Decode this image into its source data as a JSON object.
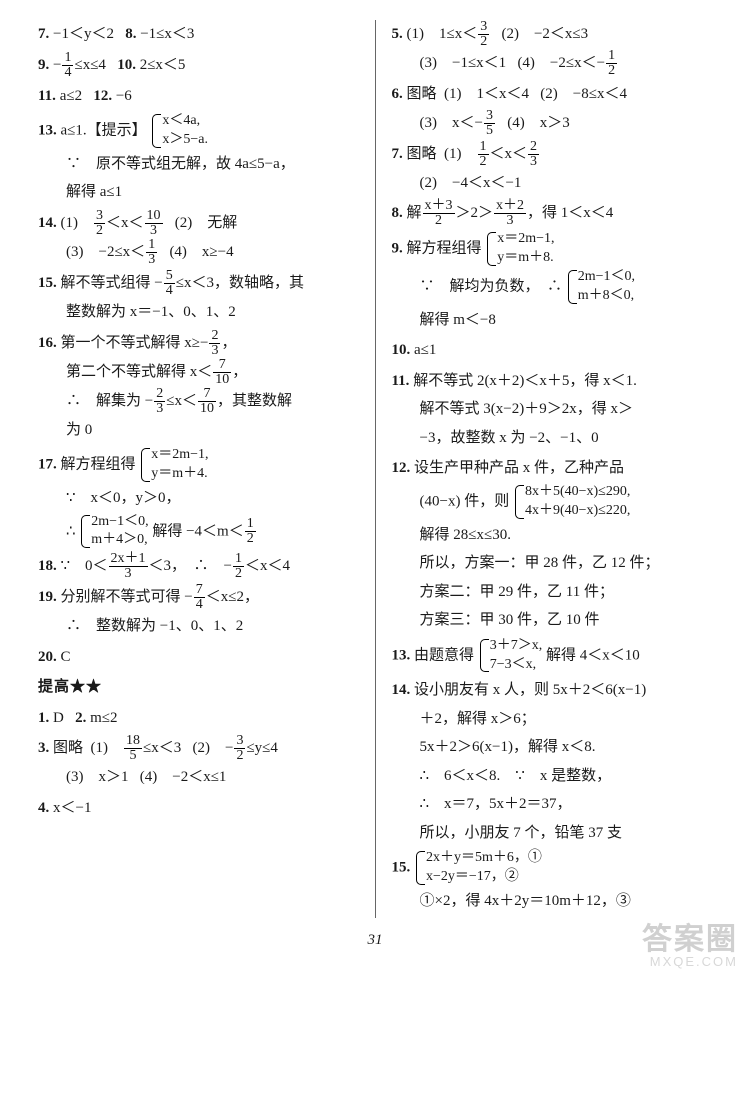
{
  "left": {
    "i7": "−1＜y＜2",
    "i8": "−1≤x＜3",
    "i9": [
      "−",
      "1",
      "4",
      "≤x≤4"
    ],
    "i10": "2≤x＜5",
    "i11": "a≤2",
    "i12": "−6",
    "i13": {
      "ans": "a≤1.",
      "hint_label": "【提示】",
      "brace": [
        "x＜4a,",
        "x＞5−a."
      ],
      "line1": "∵　原不等式组无解，故 4a≤5−a，",
      "line2": "解得 a≤1"
    },
    "i14": {
      "p1": [
        "(1)　",
        "3",
        "2",
        "＜x＜",
        "10",
        "3"
      ],
      "p2": "(2)　无解",
      "p3": [
        "(3)　−2≤x＜",
        "1",
        "3"
      ],
      "p4": "(4)　x≥−4"
    },
    "i15": {
      "l1": [
        "解不等式组得 −",
        "5",
        "4",
        "≤x＜3，数轴略，其"
      ],
      "l2": "整数解为 x＝−1、0、1、2"
    },
    "i16": {
      "l1": [
        "第一个不等式解得 x≥−",
        "2",
        "3",
        "，"
      ],
      "l2": [
        "第二个不等式解得 x＜",
        "7",
        "10",
        "，"
      ],
      "l3a": [
        "∴　解集为 −",
        "2",
        "3",
        "≤x＜",
        "7",
        "10",
        "，其整数解"
      ],
      "l3b": "为 0"
    },
    "i17": {
      "l1": "解方程组得",
      "brace1": [
        "x＝2m−1,",
        "y＝m＋4."
      ],
      "l2": "∵　x＜0，y＞0，",
      "l3a": "∴",
      "brace2": [
        "2m−1＜0,",
        "m＋4＞0,"
      ],
      "l3b": [
        "解得 −4＜m＜",
        "1",
        "2"
      ]
    },
    "i18": [
      "∵　0＜",
      "2x＋1",
      "3",
      "＜3，　∴　−",
      "1",
      "2",
      "＜x＜4"
    ],
    "i19": {
      "l1": [
        "分别解不等式可得 −",
        "7",
        "4",
        "＜x≤2，"
      ],
      "l2": "∴　整数解为 −1、0、1、2"
    },
    "i20": "C",
    "sec": "提高★★",
    "a1": "D",
    "a2": "m≤2",
    "a3": {
      "pre": "图略",
      "p1": [
        "(1)　",
        "18",
        "5",
        "≤x＜3"
      ],
      "p2": [
        "(2)　−",
        "3",
        "2",
        "≤y≤4"
      ],
      "p3": "(3)　x＞1",
      "p4": "(4)　−2＜x≤1"
    },
    "a4": "x＜−1"
  },
  "right": {
    "i5": {
      "p1": [
        "(1)　1≤x＜",
        "3",
        "2"
      ],
      "p2": "(2)　−2＜x≤3",
      "p3": "(3)　−1≤x＜1",
      "p4": [
        "(4)　−2≤x＜−",
        "1",
        "2"
      ]
    },
    "i6": {
      "pre": "图略",
      "p1": "(1)　1＜x＜4",
      "p2": "(2)　−8≤x＜4",
      "p3": [
        "(3)　x＜−",
        "3",
        "5"
      ],
      "p4": "(4)　x＞3"
    },
    "i7": {
      "pre": "图略",
      "p1": [
        "(1)　",
        "1",
        "2",
        "＜x＜",
        "2",
        "3"
      ],
      "p2": "(2)　−4＜x＜−1"
    },
    "i8": [
      "解",
      "x＋3",
      "2",
      "＞2＞",
      "x＋2",
      "3",
      "，得 1＜x＜4"
    ],
    "i9": {
      "l1": "解方程组得",
      "brace1": [
        "x＝2m−1,",
        "y＝m＋8."
      ],
      "l2a": "∵　解均为负数，　∴",
      "brace2": [
        "2m−1＜0,",
        "m＋8＜0,"
      ],
      "l3": "解得 m＜−8"
    },
    "i10": "a≤1",
    "i11": {
      "l1": "解不等式 2(x＋2)＜x＋5，得 x＜1.",
      "l2": "解不等式 3(x−2)＋9＞2x，得 x＞",
      "l3": "−3，故整数 x 为 −2、−1、0"
    },
    "i12": {
      "l1": "设生产甲种产品 x 件，乙种产品",
      "l2a": "(40−x) 件，则",
      "brace": [
        "8x＋5(40−x)≤290,",
        "4x＋9(40−x)≤220,"
      ],
      "l3": "解得 28≤x≤30.",
      "l4": "所以，方案一：甲 28 件，乙 12 件；",
      "l5": "方案二：甲 29 件，乙 11 件；",
      "l6": "方案三：甲 30 件，乙 10 件"
    },
    "i13": {
      "l1a": "由题意得",
      "brace": [
        "3＋7＞x,",
        "7−3＜x,"
      ],
      "l1b": "解得 4＜x＜10"
    },
    "i14": {
      "l1": "设小朋友有 x 人，则 5x＋2＜6(x−1)",
      "l2": "＋2，解得 x＞6；",
      "l3": "5x＋2＞6(x−1)，解得 x＜8.",
      "l4": "∴　6＜x＜8.　∵　x 是整数，",
      "l5": "∴　x＝7，5x＋2＝37，",
      "l6": "所以，小朋友 7 个，铅笔 37 支"
    },
    "i15": {
      "brace": [
        "2x＋y＝5m＋6，①",
        "x−2y＝−17，②"
      ],
      "l2": "①×2，得 4x＋2y＝10m＋12，③"
    }
  },
  "pagenum": "31",
  "watermark": {
    "big": "答案圈",
    "small": "MXQE.COM"
  }
}
